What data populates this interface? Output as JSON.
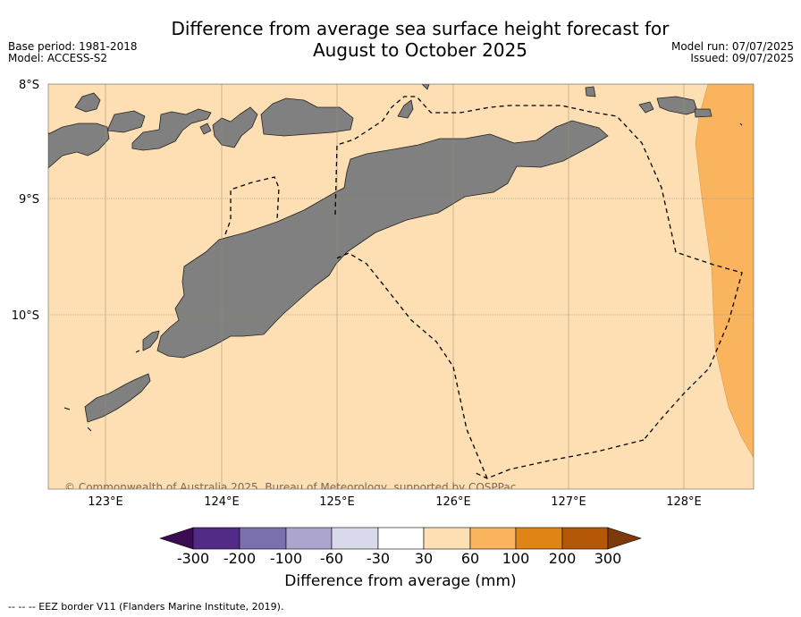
{
  "header": {
    "title_line1": "Difference from average sea surface height forecast for",
    "title_line2": "August to October 2025",
    "base_period": "Base period: 1981-2018",
    "model": "Model: ACCESS-S2",
    "model_run": "Model run: 07/07/2025",
    "issued": "Issued: 09/07/2025"
  },
  "map": {
    "lat_labels": [
      "8°S",
      "9°S",
      "10°S"
    ],
    "lon_labels": [
      "123°E",
      "124°E",
      "125°E",
      "126°E",
      "127°E",
      "128°E"
    ],
    "copyright": "© Commonwealth of Australia 2025, Bureau of Meteorology, supported by COSPPac",
    "colors": {
      "ocean_30_60": "#fddfb3",
      "ocean_60_100": "#fbb45e",
      "land": "#808080",
      "grid": "#9a8a70"
    }
  },
  "colorbar": {
    "labels": [
      "-300",
      "-200",
      "-100",
      "-60",
      "-30",
      "30",
      "60",
      "100",
      "200",
      "300"
    ],
    "colors": [
      "#3c0c52",
      "#522b86",
      "#7b70ae",
      "#aca6cf",
      "#d8d9ea",
      "#ffffff",
      "#fddfb3",
      "#fbb45e",
      "#e08416",
      "#b45807",
      "#7d3b0b"
    ],
    "title": "Difference from average (mm)"
  },
  "footer": {
    "legend": "--  --  -- EEZ border V11 (Flanders Marine Institute, 2019)."
  }
}
